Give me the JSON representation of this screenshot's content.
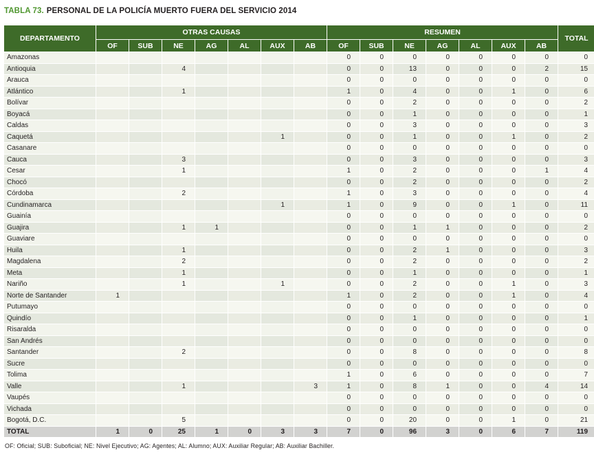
{
  "title": {
    "label": "TABLA 73.",
    "text": "PERSONAL DE LA POLICÍA MUERTO FUERA DEL SERVICIO 2014"
  },
  "table": {
    "department_header": "DEPARTAMENTO",
    "group1": "OTRAS CAUSAS",
    "group2": "RESUMEN",
    "total_header": "TOTAL",
    "sub_columns": [
      "OF",
      "SUB",
      "NE",
      "AG",
      "AL",
      "AUX",
      "AB"
    ],
    "rows": [
      {
        "name": "Amazonas",
        "otras": [
          "",
          "",
          "",
          "",
          "",
          "",
          ""
        ],
        "resumen": [
          "0",
          "0",
          "0",
          "0",
          "0",
          "0",
          "0"
        ],
        "total": "0"
      },
      {
        "name": "Antioquia",
        "otras": [
          "",
          "",
          "4",
          "",
          "",
          "",
          ""
        ],
        "resumen": [
          "0",
          "0",
          "13",
          "0",
          "0",
          "0",
          "2"
        ],
        "total": "15"
      },
      {
        "name": "Arauca",
        "otras": [
          "",
          "",
          "",
          "",
          "",
          "",
          ""
        ],
        "resumen": [
          "0",
          "0",
          "0",
          "0",
          "0",
          "0",
          "0"
        ],
        "total": "0"
      },
      {
        "name": "Atlántico",
        "otras": [
          "",
          "",
          "1",
          "",
          "",
          "",
          ""
        ],
        "resumen": [
          "1",
          "0",
          "4",
          "0",
          "0",
          "1",
          "0"
        ],
        "total": "6"
      },
      {
        "name": "Bolívar",
        "otras": [
          "",
          "",
          "",
          "",
          "",
          "",
          ""
        ],
        "resumen": [
          "0",
          "0",
          "2",
          "0",
          "0",
          "0",
          "0"
        ],
        "total": "2"
      },
      {
        "name": "Boyacá",
        "otras": [
          "",
          "",
          "",
          "",
          "",
          "",
          ""
        ],
        "resumen": [
          "0",
          "0",
          "1",
          "0",
          "0",
          "0",
          "0"
        ],
        "total": "1"
      },
      {
        "name": "Caldas",
        "otras": [
          "",
          "",
          "",
          "",
          "",
          "",
          ""
        ],
        "resumen": [
          "0",
          "0",
          "3",
          "0",
          "0",
          "0",
          "0"
        ],
        "total": "3"
      },
      {
        "name": "Caquetá",
        "otras": [
          "",
          "",
          "",
          "",
          "",
          "1",
          ""
        ],
        "resumen": [
          "0",
          "0",
          "1",
          "0",
          "0",
          "1",
          "0"
        ],
        "total": "2"
      },
      {
        "name": "Casanare",
        "otras": [
          "",
          "",
          "",
          "",
          "",
          "",
          ""
        ],
        "resumen": [
          "0",
          "0",
          "0",
          "0",
          "0",
          "0",
          "0"
        ],
        "total": "0"
      },
      {
        "name": "Cauca",
        "otras": [
          "",
          "",
          "3",
          "",
          "",
          "",
          ""
        ],
        "resumen": [
          "0",
          "0",
          "3",
          "0",
          "0",
          "0",
          "0"
        ],
        "total": "3"
      },
      {
        "name": "Cesar",
        "otras": [
          "",
          "",
          "1",
          "",
          "",
          "",
          ""
        ],
        "resumen": [
          "1",
          "0",
          "2",
          "0",
          "0",
          "0",
          "1"
        ],
        "total": "4"
      },
      {
        "name": "Chocó",
        "otras": [
          "",
          "",
          "",
          "",
          "",
          "",
          ""
        ],
        "resumen": [
          "0",
          "0",
          "2",
          "0",
          "0",
          "0",
          "0"
        ],
        "total": "2"
      },
      {
        "name": "Córdoba",
        "otras": [
          "",
          "",
          "2",
          "",
          "",
          "",
          ""
        ],
        "resumen": [
          "1",
          "0",
          "3",
          "0",
          "0",
          "0",
          "0"
        ],
        "total": "4"
      },
      {
        "name": "Cundinamarca",
        "otras": [
          "",
          "",
          "",
          "",
          "",
          "1",
          ""
        ],
        "resumen": [
          "1",
          "0",
          "9",
          "0",
          "0",
          "1",
          "0"
        ],
        "total": "11"
      },
      {
        "name": "Guainía",
        "otras": [
          "",
          "",
          "",
          "",
          "",
          "",
          ""
        ],
        "resumen": [
          "0",
          "0",
          "0",
          "0",
          "0",
          "0",
          "0"
        ],
        "total": "0"
      },
      {
        "name": "Guajira",
        "otras": [
          "",
          "",
          "1",
          "1",
          "",
          "",
          ""
        ],
        "resumen": [
          "0",
          "0",
          "1",
          "1",
          "0",
          "0",
          "0"
        ],
        "total": "2"
      },
      {
        "name": "Guaviare",
        "otras": [
          "",
          "",
          "",
          "",
          "",
          "",
          ""
        ],
        "resumen": [
          "0",
          "0",
          "0",
          "0",
          "0",
          "0",
          "0"
        ],
        "total": "0"
      },
      {
        "name": "Huila",
        "otras": [
          "",
          "",
          "1",
          "",
          "",
          "",
          ""
        ],
        "resumen": [
          "0",
          "0",
          "2",
          "1",
          "0",
          "0",
          "0"
        ],
        "total": "3"
      },
      {
        "name": "Magdalena",
        "otras": [
          "",
          "",
          "2",
          "",
          "",
          "",
          ""
        ],
        "resumen": [
          "0",
          "0",
          "2",
          "0",
          "0",
          "0",
          "0"
        ],
        "total": "2"
      },
      {
        "name": "Meta",
        "otras": [
          "",
          "",
          "1",
          "",
          "",
          "",
          ""
        ],
        "resumen": [
          "0",
          "0",
          "1",
          "0",
          "0",
          "0",
          "0"
        ],
        "total": "1"
      },
      {
        "name": "Nariño",
        "otras": [
          "",
          "",
          "1",
          "",
          "",
          "1",
          ""
        ],
        "resumen": [
          "0",
          "0",
          "2",
          "0",
          "0",
          "1",
          "0"
        ],
        "total": "3"
      },
      {
        "name": "Norte de Santander",
        "otras": [
          "1",
          "",
          "",
          "",
          "",
          "",
          ""
        ],
        "resumen": [
          "1",
          "0",
          "2",
          "0",
          "0",
          "1",
          "0"
        ],
        "total": "4"
      },
      {
        "name": "Putumayo",
        "otras": [
          "",
          "",
          "",
          "",
          "",
          "",
          ""
        ],
        "resumen": [
          "0",
          "0",
          "0",
          "0",
          "0",
          "0",
          "0"
        ],
        "total": "0"
      },
      {
        "name": "Quindío",
        "otras": [
          "",
          "",
          "",
          "",
          "",
          "",
          ""
        ],
        "resumen": [
          "0",
          "0",
          "1",
          "0",
          "0",
          "0",
          "0"
        ],
        "total": "1"
      },
      {
        "name": "Risaralda",
        "otras": [
          "",
          "",
          "",
          "",
          "",
          "",
          ""
        ],
        "resumen": [
          "0",
          "0",
          "0",
          "0",
          "0",
          "0",
          "0"
        ],
        "total": "0"
      },
      {
        "name": "San Andrés",
        "otras": [
          "",
          "",
          "",
          "",
          "",
          "",
          ""
        ],
        "resumen": [
          "0",
          "0",
          "0",
          "0",
          "0",
          "0",
          "0"
        ],
        "total": "0"
      },
      {
        "name": "Santander",
        "otras": [
          "",
          "",
          "2",
          "",
          "",
          "",
          ""
        ],
        "resumen": [
          "0",
          "0",
          "8",
          "0",
          "0",
          "0",
          "0"
        ],
        "total": "8"
      },
      {
        "name": "Sucre",
        "otras": [
          "",
          "",
          "",
          "",
          "",
          "",
          ""
        ],
        "resumen": [
          "0",
          "0",
          "0",
          "0",
          "0",
          "0",
          "0"
        ],
        "total": "0"
      },
      {
        "name": "Tolima",
        "otras": [
          "",
          "",
          "",
          "",
          "",
          "",
          ""
        ],
        "resumen": [
          "1",
          "0",
          "6",
          "0",
          "0",
          "0",
          "0"
        ],
        "total": "7"
      },
      {
        "name": "Valle",
        "otras": [
          "",
          "",
          "1",
          "",
          "",
          "",
          "3"
        ],
        "resumen": [
          "1",
          "0",
          "8",
          "1",
          "0",
          "0",
          "4"
        ],
        "total": "14"
      },
      {
        "name": "Vaupés",
        "otras": [
          "",
          "",
          "",
          "",
          "",
          "",
          ""
        ],
        "resumen": [
          "0",
          "0",
          "0",
          "0",
          "0",
          "0",
          "0"
        ],
        "total": "0"
      },
      {
        "name": "Vichada",
        "otras": [
          "",
          "",
          "",
          "",
          "",
          "",
          ""
        ],
        "resumen": [
          "0",
          "0",
          "0",
          "0",
          "0",
          "0",
          "0"
        ],
        "total": "0"
      },
      {
        "name": "Bogotá, D.C.",
        "otras": [
          "",
          "",
          "5",
          "",
          "",
          "",
          ""
        ],
        "resumen": [
          "0",
          "0",
          "20",
          "0",
          "0",
          "1",
          "0"
        ],
        "total": "21"
      }
    ],
    "total_row": {
      "name": "TOTAL",
      "otras": [
        "1",
        "0",
        "25",
        "1",
        "0",
        "3",
        "3"
      ],
      "resumen": [
        "7",
        "0",
        "96",
        "3",
        "0",
        "6",
        "7"
      ],
      "total": "119"
    }
  },
  "footnote": "OF: Oficial; SUB: Suboficial; NE: Nivel Ejecutivo; AG: Agentes; AL: Alumno; AUX: Auxiliar Regular; AB: Auxiliar Bachiller.",
  "colors": {
    "header_green": "#3e6b29",
    "title_green": "#4f962f",
    "row_odd": "#f2f4ec",
    "row_even": "#e4e8de",
    "total_row_bg": "#d2d2d0",
    "text": "#231f20"
  }
}
